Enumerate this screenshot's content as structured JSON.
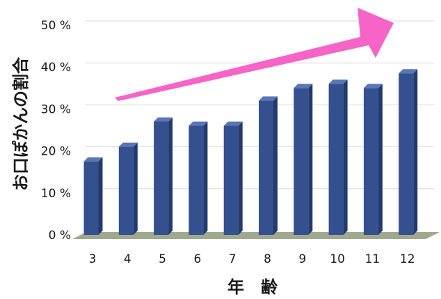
{
  "chart_data": {
    "type": "bar",
    "title": "",
    "xlabel": "年　齢",
    "ylabel": "お口ぽかんの割合",
    "categories": [
      "3",
      "4",
      "5",
      "6",
      "7",
      "8",
      "9",
      "10",
      "11",
      "12"
    ],
    "series": [
      {
        "values": [
          17.5,
          21,
          27,
          26,
          26,
          32,
          35,
          36,
          35,
          38.5
        ]
      }
    ],
    "ylim": [
      0,
      50
    ],
    "yticks": [
      0,
      10,
      20,
      30,
      40,
      50
    ],
    "ytick_labels": [
      "0 %",
      "10 %",
      "20 %",
      "30 %",
      "40 %",
      "50 %"
    ],
    "grid": true,
    "legend": "none",
    "annotations": [
      {
        "type": "trend-arrow",
        "direction": "up-right",
        "color": "#f564c6"
      }
    ],
    "colors": {
      "bar_front": "#34508f",
      "bar_side": "#223a6e",
      "bar_top": "#5b76b4",
      "floor": "#9ea98e",
      "grid": "#d9d9d9",
      "arrow": "#f564c6"
    }
  }
}
